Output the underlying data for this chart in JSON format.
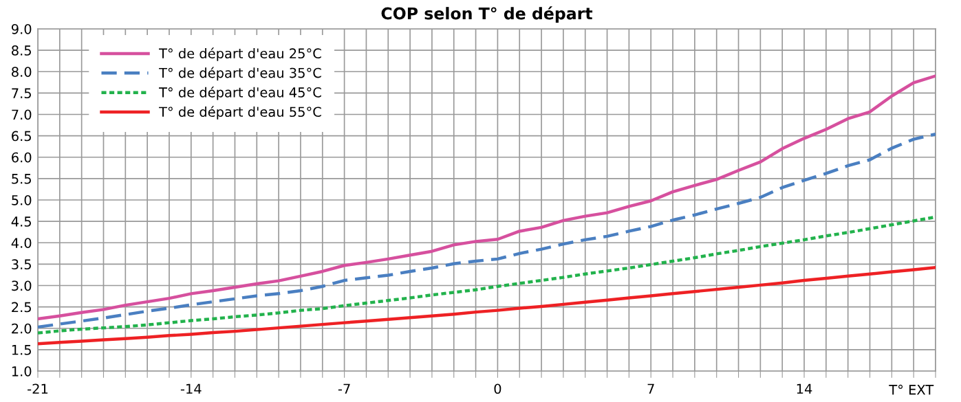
{
  "chart_data": {
    "type": "line",
    "title": "COP selon T° de départ",
    "xlabel": "T° EXT",
    "x": [
      -21,
      -20,
      -19,
      -18,
      -17,
      -16,
      -15,
      -14,
      -13,
      -12,
      -11,
      -10,
      -9,
      -8,
      -7,
      -6,
      -5,
      -4,
      -3,
      -2,
      -1,
      0,
      1,
      2,
      3,
      4,
      5,
      6,
      7,
      8,
      9,
      10,
      11,
      12,
      13,
      14,
      15,
      16,
      17,
      18,
      19,
      20
    ],
    "series": [
      {
        "name": "T° de départ d'eau 25°C",
        "color": "#d6509e",
        "line_style": "solid",
        "values": [
          2.22,
          2.29,
          2.37,
          2.44,
          2.54,
          2.62,
          2.7,
          2.81,
          2.88,
          2.96,
          3.04,
          3.11,
          3.22,
          3.33,
          3.47,
          3.54,
          3.62,
          3.71,
          3.8,
          3.95,
          4.03,
          4.08,
          4.27,
          4.36,
          4.52,
          4.62,
          4.7,
          4.85,
          4.98,
          5.19,
          5.34,
          5.48,
          5.69,
          5.89,
          6.2,
          6.44,
          6.65,
          6.9,
          7.06,
          7.43,
          7.74,
          7.9
        ]
      },
      {
        "name": "T° de départ d'eau 35°C",
        "color": "#4a7fc1",
        "line_style": "dashed",
        "values": [
          2.03,
          2.1,
          2.17,
          2.24,
          2.32,
          2.4,
          2.47,
          2.55,
          2.62,
          2.69,
          2.76,
          2.81,
          2.88,
          2.98,
          3.12,
          3.18,
          3.24,
          3.33,
          3.41,
          3.51,
          3.57,
          3.62,
          3.75,
          3.85,
          3.97,
          4.07,
          4.15,
          4.27,
          4.38,
          4.53,
          4.65,
          4.79,
          4.92,
          5.06,
          5.29,
          5.46,
          5.62,
          5.8,
          5.94,
          6.21,
          6.42,
          6.54
        ]
      },
      {
        "name": "T° de départ d'eau 45°C",
        "color": "#22b24c",
        "line_style": "dotted",
        "values": [
          1.89,
          1.94,
          1.98,
          2.01,
          2.04,
          2.08,
          2.13,
          2.18,
          2.22,
          2.27,
          2.31,
          2.36,
          2.42,
          2.46,
          2.53,
          2.59,
          2.65,
          2.71,
          2.78,
          2.84,
          2.9,
          2.98,
          3.05,
          3.12,
          3.19,
          3.27,
          3.34,
          3.41,
          3.49,
          3.57,
          3.65,
          3.74,
          3.82,
          3.91,
          3.99,
          4.07,
          4.16,
          4.24,
          4.33,
          4.42,
          4.51,
          4.6
        ]
      },
      {
        "name": "T° de départ d'eau 55°C",
        "color": "#ee2124",
        "line_style": "solid",
        "values": [
          1.64,
          1.67,
          1.7,
          1.73,
          1.76,
          1.79,
          1.83,
          1.86,
          1.9,
          1.93,
          1.97,
          2.01,
          2.05,
          2.09,
          2.13,
          2.17,
          2.21,
          2.25,
          2.29,
          2.33,
          2.38,
          2.42,
          2.47,
          2.51,
          2.56,
          2.61,
          2.66,
          2.71,
          2.76,
          2.81,
          2.86,
          2.91,
          2.96,
          3.01,
          3.06,
          3.12,
          3.17,
          3.22,
          3.27,
          3.32,
          3.37,
          3.42
        ]
      }
    ],
    "xlim": [
      -21,
      20
    ],
    "xticks": [
      -21,
      {
        "value": -20,
        "label": null
      },
      {
        "value": -19,
        "label": null
      },
      {
        "value": -18,
        "label": null
      },
      {
        "value": -17,
        "label": null
      },
      {
        "value": -16,
        "label": null
      },
      {
        "value": -15,
        "label": null
      },
      -14,
      {
        "value": -13,
        "label": null
      },
      {
        "value": -12,
        "label": null
      },
      {
        "value": -11,
        "label": null
      },
      {
        "value": -10,
        "label": null
      },
      {
        "value": -9,
        "label": null
      },
      {
        "value": -8,
        "label": null
      },
      -7,
      {
        "value": -6,
        "label": null
      },
      {
        "value": -5,
        "label": null
      },
      {
        "value": -4,
        "label": null
      },
      {
        "value": -3,
        "label": null
      },
      {
        "value": -2,
        "label": null
      },
      {
        "value": -1,
        "label": null
      },
      0,
      {
        "value": 1,
        "label": null
      },
      {
        "value": 2,
        "label": null
      },
      {
        "value": 3,
        "label": null
      },
      {
        "value": 4,
        "label": null
      },
      {
        "value": 5,
        "label": null
      },
      {
        "value": 6,
        "label": null
      },
      7,
      {
        "value": 8,
        "label": null
      },
      {
        "value": 9,
        "label": null
      },
      {
        "value": 10,
        "label": null
      },
      {
        "value": 11,
        "label": null
      },
      {
        "value": 12,
        "label": null
      },
      {
        "value": 13,
        "label": null
      },
      14,
      {
        "value": 15,
        "label": null
      },
      {
        "value": 16,
        "label": null
      },
      {
        "value": 17,
        "label": null
      },
      {
        "value": 18,
        "label": null
      },
      {
        "value": 19,
        "label": null
      },
      {
        "value": 20,
        "label": null
      }
    ],
    "ylim": [
      1.0,
      9.0
    ],
    "yticks": [
      {
        "value": 1.0,
        "label": "1.0"
      },
      {
        "value": 1.5,
        "label": "1.5"
      },
      {
        "value": 2.0,
        "label": "2.0"
      },
      {
        "value": 2.5,
        "label": "2.5"
      },
      {
        "value": 3.0,
        "label": "3.0"
      },
      {
        "value": 3.5,
        "label": "3.5"
      },
      {
        "value": 4.0,
        "label": "4.0"
      },
      {
        "value": 4.5,
        "label": "4.5"
      },
      {
        "value": 5.0,
        "label": "5.0"
      },
      {
        "value": 5.5,
        "label": "5.5"
      },
      {
        "value": 6.0,
        "label": "6.0"
      },
      {
        "value": 6.5,
        "label": "6.5"
      },
      {
        "value": 7.0,
        "label": "7.0"
      },
      {
        "value": 7.5,
        "label": "7.5"
      },
      {
        "value": 8.0,
        "label": "8.0"
      },
      {
        "value": 8.5,
        "label": "8.5"
      },
      {
        "value": 9.0,
        "label": "9.0"
      }
    ],
    "grid": true,
    "legend": "top left",
    "marker": "none"
  }
}
